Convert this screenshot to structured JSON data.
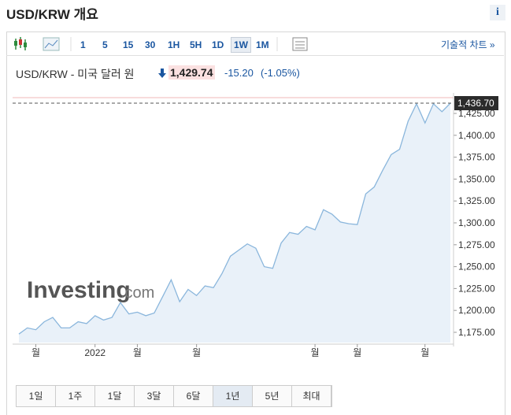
{
  "header": {
    "title": "USD/KRW 개요",
    "info": "i"
  },
  "toolbar": {
    "intervals": [
      "1",
      "5",
      "15",
      "30",
      "1H",
      "5H",
      "1D",
      "1W",
      "1M"
    ],
    "active": 7,
    "tech_chart": "기술적 차트 »"
  },
  "quote": {
    "name": "USD/KRW - 미국 달러 원",
    "price": "1,429.74",
    "change": "-15.20",
    "change_pct": "(-1.05%)"
  },
  "watermark": {
    "brand": "Investing",
    ".com": ".com"
  },
  "chart_data": {
    "type": "area",
    "color": "#8ab6dc",
    "fill": "#e9f1f9",
    "categories": [
      null,
      null,
      "월",
      null,
      null,
      null,
      null,
      null,
      null,
      "2022",
      null,
      null,
      null,
      null,
      "월",
      null,
      null,
      null,
      null,
      null,
      null,
      "월",
      null,
      null,
      null,
      null,
      null,
      null,
      null,
      null,
      null,
      null,
      null,
      null,
      null,
      "월",
      null,
      null,
      null,
      null,
      "월",
      null,
      null,
      null,
      null,
      null,
      null,
      null,
      "월",
      null,
      null,
      null
    ],
    "values": [
      1173,
      1180,
      1178,
      1187,
      1192,
      1180,
      1180,
      1187,
      1185,
      1194,
      1189,
      1192,
      1209,
      1196,
      1198,
      1194,
      1197,
      1216,
      1235,
      1210,
      1224,
      1217,
      1228,
      1226,
      1242,
      1262,
      1269,
      1276,
      1271,
      1250,
      1248,
      1277,
      1289,
      1287,
      1296,
      1292,
      1315,
      1310,
      1301,
      1299,
      1298,
      1333,
      1341,
      1360,
      1378,
      1384,
      1416,
      1436,
      1414,
      1436,
      1427,
      1436.7
    ],
    "ylim": [
      1163.3,
      1446.6
    ],
    "yticks": [
      {
        "value": 1175,
        "label": "1,175.00"
      },
      {
        "value": 1200,
        "label": "1,200.00"
      },
      {
        "value": 1225,
        "label": "1,225.00"
      },
      {
        "value": 1250,
        "label": "1,250.00"
      },
      {
        "value": 1275,
        "label": "1,275.00"
      },
      {
        "value": 1300,
        "label": "1,300.00"
      },
      {
        "value": 1325,
        "label": "1,325.00"
      },
      {
        "value": 1350,
        "label": "1,350.00"
      },
      {
        "value": 1375,
        "label": "1,375.00"
      },
      {
        "value": 1400,
        "label": "1,400.00"
      },
      {
        "value": 1425,
        "label": "1,425.00"
      }
    ],
    "current": {
      "value": 1436.7,
      "label": "1,436.70"
    }
  },
  "ranges": {
    "items": [
      "1일",
      "1주",
      "1달",
      "3달",
      "6달",
      "1년",
      "5년",
      "최대"
    ],
    "active": 5
  }
}
